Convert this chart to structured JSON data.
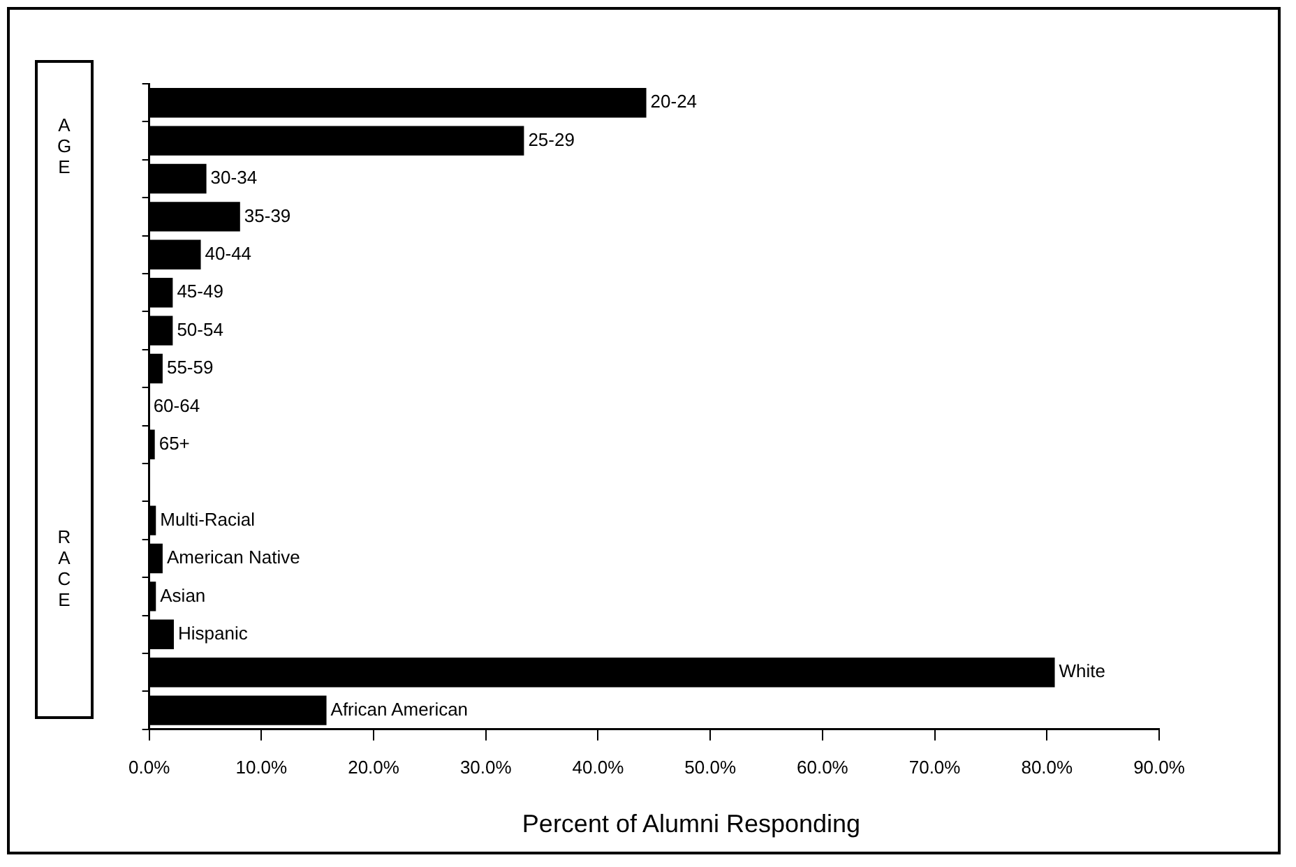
{
  "chart_data": {
    "type": "bar",
    "orientation": "horizontal",
    "xlabel": "Percent of Alumni Responding",
    "categories": [
      "20-24",
      "25-29",
      "30-34",
      "35-39",
      "40-44",
      "45-49",
      "50-54",
      "55-59",
      "60-64",
      "65+",
      null,
      "Multi-Racial",
      "American Native",
      "Asian",
      "Hispanic",
      "White",
      "African American"
    ],
    "values": [
      44.3,
      33.4,
      5.1,
      8.1,
      4.6,
      2.1,
      2.1,
      1.2,
      0,
      0.5,
      null,
      0.6,
      1.2,
      0.6,
      2.2,
      80.7,
      15.8
    ],
    "color": "#000000",
    "xlim": [
      0,
      90
    ],
    "xticks": [
      {
        "value": 0,
        "label": "0.0%"
      },
      {
        "value": 10,
        "label": "10.0%"
      },
      {
        "value": 20,
        "label": "20.0%"
      },
      {
        "value": 30,
        "label": "30.0%"
      },
      {
        "value": 40,
        "label": "40.0%"
      },
      {
        "value": 50,
        "label": "50.0%"
      },
      {
        "value": 60,
        "label": "60.0%"
      },
      {
        "value": 70,
        "label": "70.0%"
      },
      {
        "value": 80,
        "label": "80.0%"
      },
      {
        "value": 90,
        "label": "90.0%"
      }
    ],
    "annotations": [
      "AGE",
      "RACE"
    ],
    "grid": false,
    "legend": false,
    "tick_labels": "x"
  }
}
